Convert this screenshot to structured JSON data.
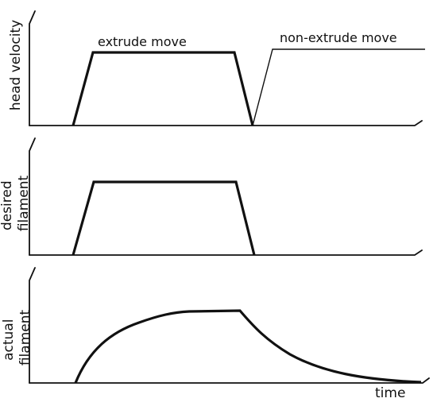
{
  "panels": [
    {
      "ylabel_lines": [
        "head velocity"
      ],
      "annotations": [
        "extrude move",
        "non-extrude move"
      ]
    },
    {
      "ylabel_lines": [
        "desired",
        "filament"
      ]
    },
    {
      "ylabel_lines": [
        "actual",
        "filament"
      ],
      "xlabel": "time"
    }
  ]
}
